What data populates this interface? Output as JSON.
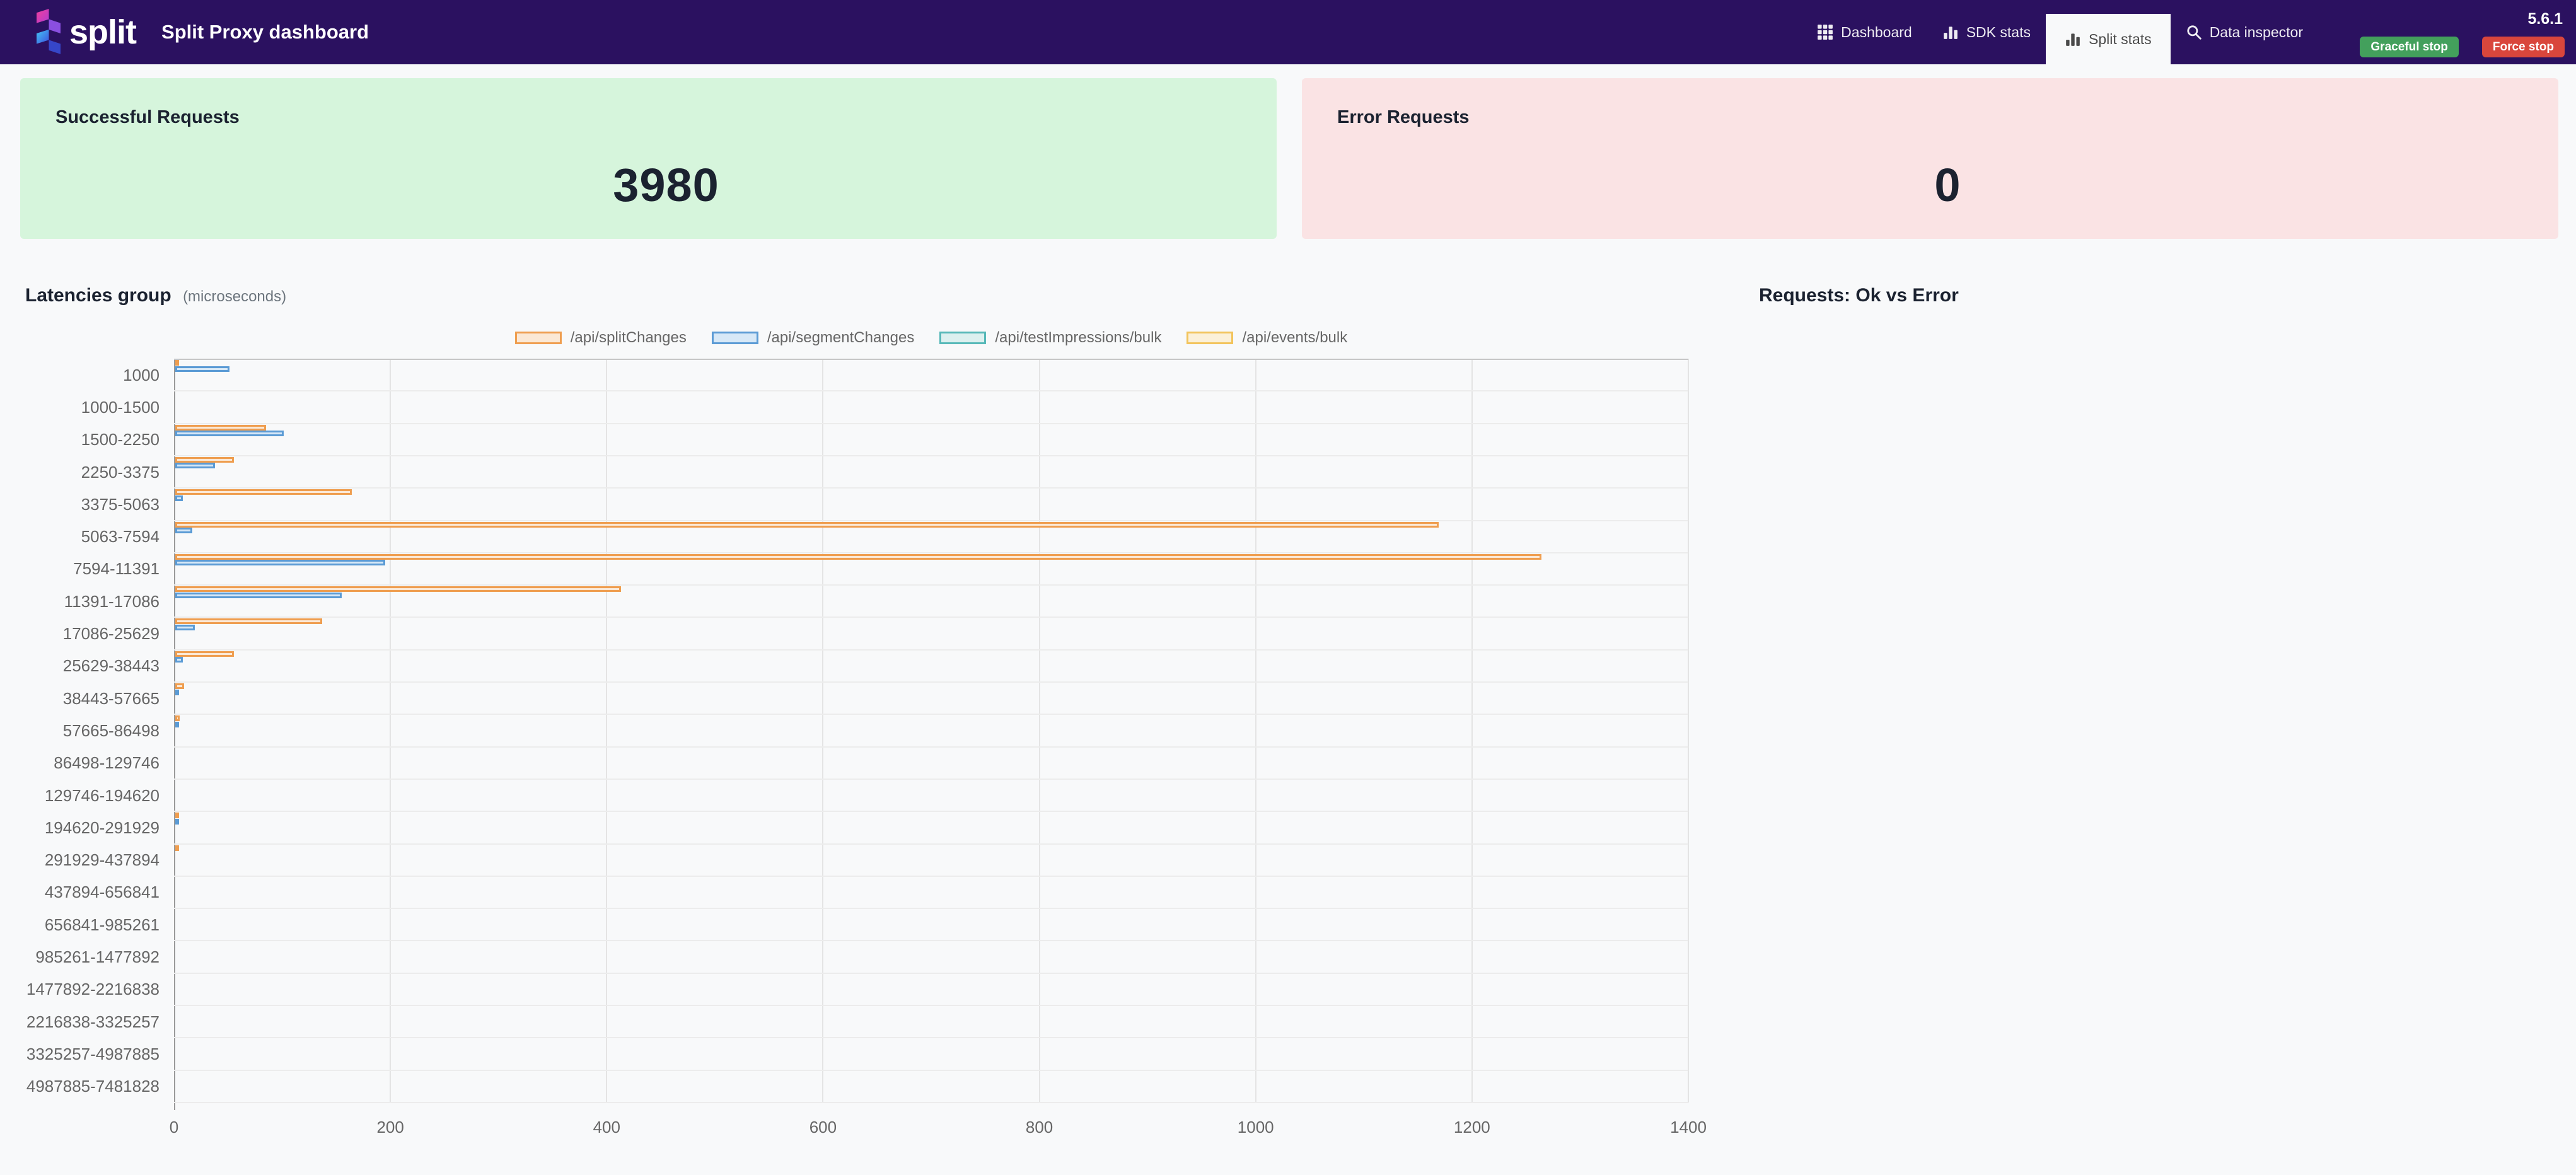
{
  "header": {
    "brand": "split",
    "title": "Split Proxy dashboard",
    "version": "5.6.1",
    "background": "#2b1160",
    "nav": [
      {
        "label": "Dashboard",
        "icon": "grid-icon",
        "active": false
      },
      {
        "label": "SDK stats",
        "icon": "bar-chart-icon",
        "active": false
      },
      {
        "label": "Split stats",
        "icon": "bar-chart-icon",
        "active": true
      },
      {
        "label": "Data inspector",
        "icon": "search-icon",
        "active": false
      }
    ],
    "actions": [
      {
        "label": "Graceful stop",
        "color": "#43a05c"
      },
      {
        "label": "Force stop",
        "color": "#d9463c"
      }
    ]
  },
  "cards": {
    "success": {
      "title": "Successful Requests",
      "value": "3980",
      "bg": "#d6f5dc"
    },
    "error": {
      "title": "Error Requests",
      "value": "0",
      "bg": "#fae3e4"
    }
  },
  "sections": {
    "latencies": {
      "title": "Latencies group",
      "subtitle": "(microseconds)"
    },
    "requests": {
      "title": "Requests: Ok vs Error"
    }
  },
  "chart_data": [
    {
      "type": "bar",
      "orientation": "horizontal",
      "title": "Latencies group (microseconds)",
      "categories": [
        "1000",
        "1000-1500",
        "1500-2250",
        "2250-3375",
        "3375-5063",
        "5063-7594",
        "7594-11391",
        "11391-17086",
        "17086-25629",
        "25629-38443",
        "38443-57665",
        "57665-86498",
        "86498-129746",
        "129746-194620",
        "194620-291929",
        "291929-437894",
        "437894-656841",
        "656841-985261",
        "985261-1477892",
        "1477892-2216838",
        "2216838-3325257",
        "3325257-4987885",
        "4987885-7481828"
      ],
      "series": [
        {
          "name": "/api/splitChanges",
          "border": "#ef9e50",
          "fill": "#fbe8d5",
          "values": [
            2,
            0,
            84,
            54,
            163,
            1168,
            1263,
            412,
            136,
            54,
            8,
            4,
            0,
            0,
            3,
            3,
            0,
            0,
            0,
            0,
            0,
            0,
            0
          ]
        },
        {
          "name": "/api/segmentChanges",
          "border": "#5b9bd5",
          "fill": "#d7e8f7",
          "values": [
            50,
            0,
            100,
            37,
            7,
            16,
            194,
            154,
            18,
            7,
            2,
            1,
            0,
            0,
            2,
            0,
            0,
            0,
            0,
            0,
            0,
            0,
            0
          ]
        },
        {
          "name": "/api/testImpressions/bulk",
          "border": "#56b8b8",
          "fill": "#dcf0ef",
          "values": [
            0,
            0,
            0,
            0,
            0,
            0,
            0,
            0,
            0,
            0,
            0,
            0,
            0,
            0,
            0,
            0,
            0,
            0,
            0,
            0,
            0,
            0,
            0
          ]
        },
        {
          "name": "/api/events/bulk",
          "border": "#f2c45c",
          "fill": "#fbf0d8",
          "values": [
            0,
            0,
            0,
            0,
            0,
            0,
            0,
            0,
            0,
            0,
            0,
            0,
            0,
            0,
            0,
            0,
            0,
            0,
            0,
            0,
            0,
            0,
            0
          ]
        }
      ],
      "x_ticks": [
        0,
        200,
        400,
        600,
        800,
        1000,
        1200,
        1400
      ],
      "xlim": [
        0,
        1400
      ],
      "grid": true,
      "legend_position": "top"
    },
    {
      "type": "pie",
      "title": "Requests: Ok vs Error",
      "categories": [],
      "values": []
    }
  ]
}
